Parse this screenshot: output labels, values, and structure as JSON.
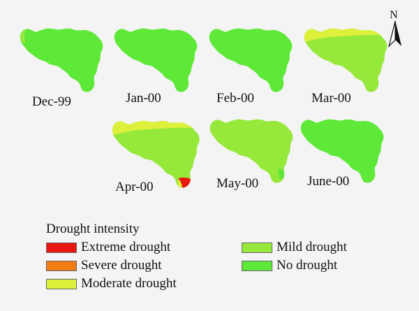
{
  "colors": {
    "extreme": "#e8170f",
    "severe": "#f07c13",
    "moderate": "#dcf03c",
    "mild": "#96e83a",
    "none": "#5ee837"
  },
  "north_label": "N",
  "icons": {
    "north": "north-arrow-icon"
  },
  "maps": [
    {
      "label": "Dec-99",
      "fill": "none",
      "overlays": [
        "mild-west-edge"
      ]
    },
    {
      "label": "Jan-00",
      "fill": "none",
      "overlays": []
    },
    {
      "label": "Feb-00",
      "fill": "none",
      "overlays": []
    },
    {
      "label": "Mar-00",
      "fill": "mild",
      "overlays": [
        "moderate-north-strip"
      ]
    },
    {
      "label": "Apr-00",
      "fill": "mild",
      "overlays": [
        "moderate-north-strip",
        "extreme-south-tip",
        "moderate-south-tip"
      ]
    },
    {
      "label": "May-00",
      "fill": "mild",
      "overlays": [
        "none-south-patch"
      ]
    },
    {
      "label": "June-00",
      "fill": "none",
      "overlays": []
    }
  ],
  "legend": {
    "title": "Drought intensity",
    "items": [
      {
        "label": "Extreme drought",
        "key": "extreme"
      },
      {
        "label": "Severe drought",
        "key": "severe"
      },
      {
        "label": "Moderate drought",
        "key": "moderate"
      },
      {
        "label": "Mild drought",
        "key": "mild"
      },
      {
        "label": "No drought",
        "key": "none"
      }
    ]
  }
}
